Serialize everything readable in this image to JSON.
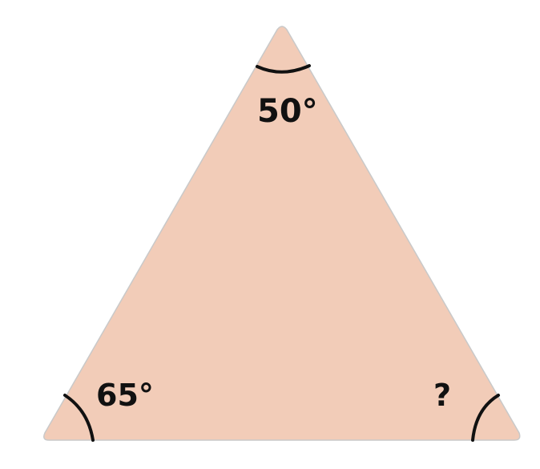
{
  "triangle": {
    "fill_color": "#f2ccb8",
    "edge_color": "#c9c9c9",
    "arc_color": "#111111"
  },
  "angles": {
    "top": "50°",
    "bottom_left": "65°",
    "bottom_right": "?"
  }
}
